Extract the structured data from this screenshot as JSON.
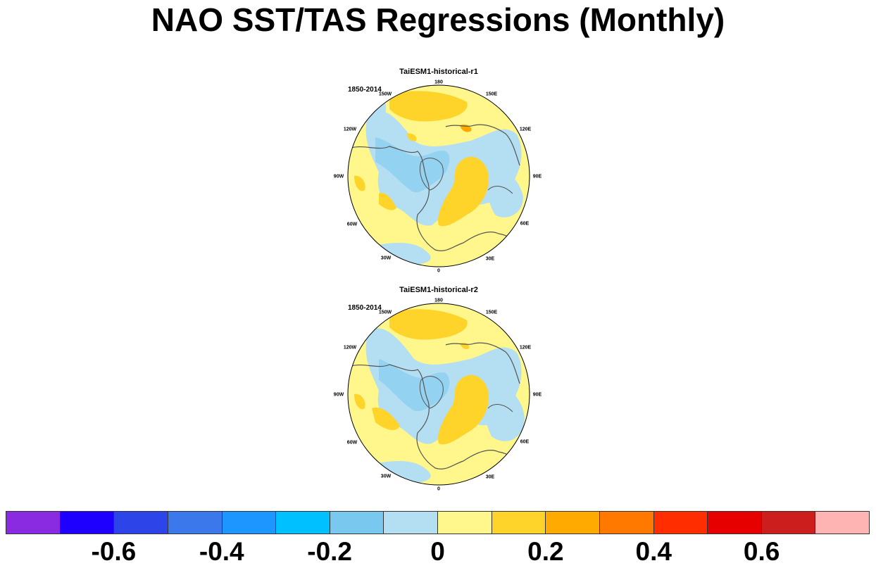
{
  "title": "NAO SST/TAS Regressions (Monthly)",
  "panels": [
    {
      "title": "TaiESM1-historical-r1",
      "period": "1850-2014"
    },
    {
      "title": "TaiESM1-historical-r2",
      "period": "1850-2014"
    }
  ],
  "longitude_labels": {
    "lon_180": "180",
    "lon_150e": "150E",
    "lon_120e": "120E",
    "lon_90e": "90E",
    "lon_60e": "60E",
    "lon_30e": "30E",
    "lon_0": "0",
    "lon_30w": "30W",
    "lon_60w": "60W",
    "lon_90w": "90W",
    "lon_120w": "120W",
    "lon_150w": "150W"
  },
  "colorbar": {
    "colors": [
      "#8a2be2",
      "#1e00ff",
      "#2d44e8",
      "#3a78ec",
      "#1e96ff",
      "#00c0ff",
      "#78c8f0",
      "#b4def2",
      "#fff68c",
      "#ffd42a",
      "#ffaa00",
      "#ff7800",
      "#ff2d00",
      "#e60000",
      "#cd1e1e",
      "#ffb4b4"
    ],
    "tick_labels": [
      "-0.6",
      "-0.4",
      "-0.2",
      "0",
      "0.2",
      "0.4",
      "0.6"
    ]
  }
}
